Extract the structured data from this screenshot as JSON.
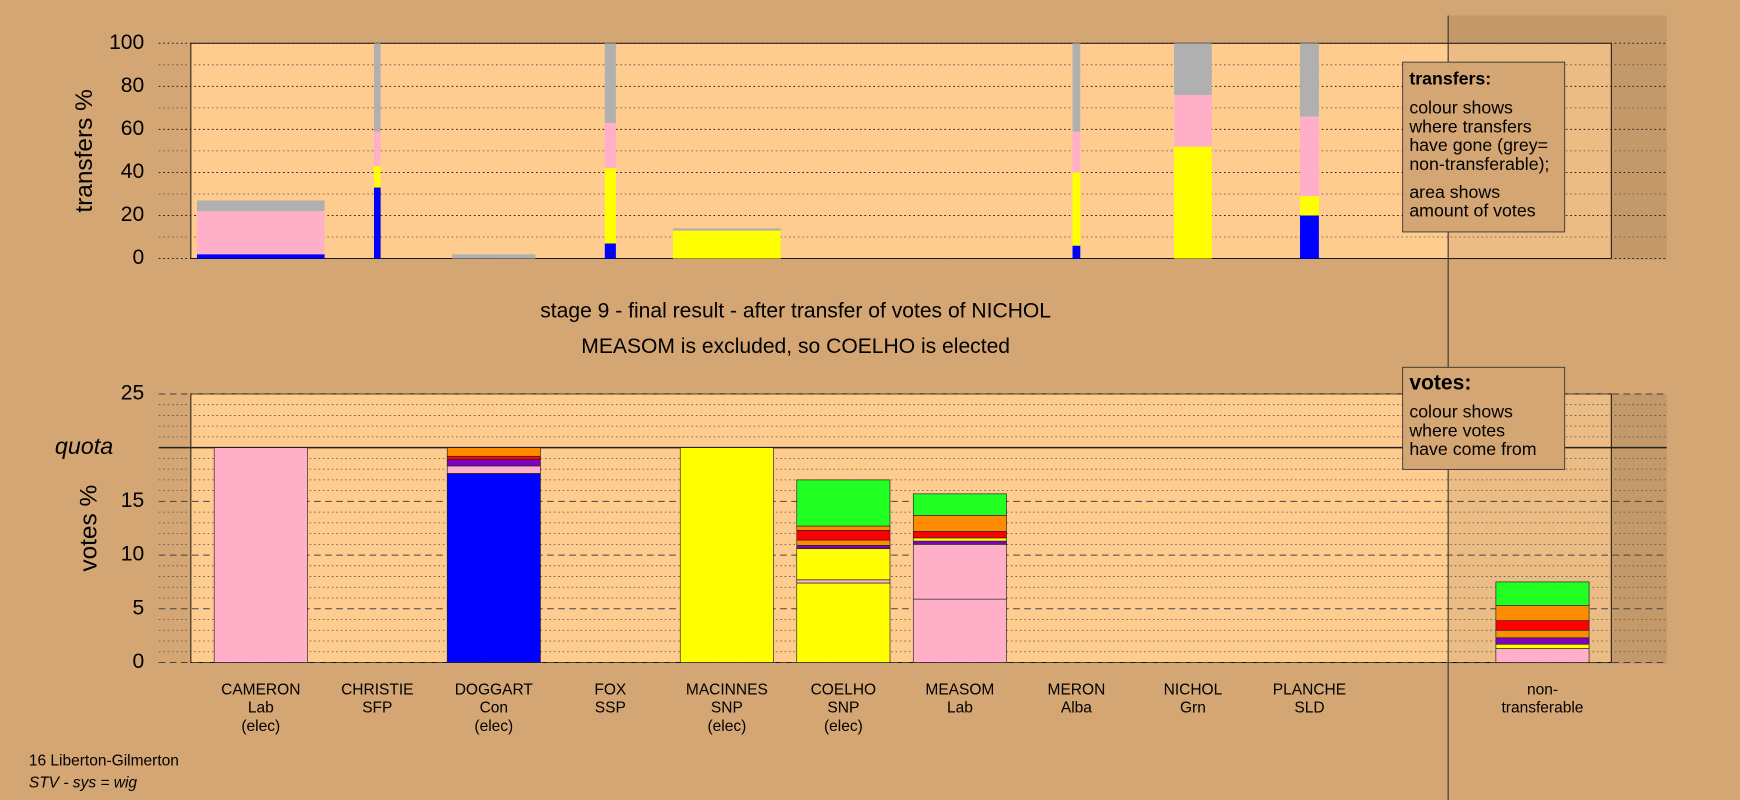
{
  "chart_data": [
    {
      "type": "bar",
      "ylabel": "transfers %",
      "ylim": [
        0,
        100
      ],
      "yticks": [
        0,
        20,
        40,
        60,
        80,
        100
      ],
      "minor_yticks": [
        10,
        30,
        50,
        70,
        90
      ],
      "amounts": [
        11.5,
        0.6,
        7.5,
        1,
        9.7,
        null,
        null,
        0.7,
        3.4,
        1.7,
        null
      ],
      "series": [
        {
          "color": "#0000ff",
          "values": [
            2,
            33,
            null,
            7,
            null,
            null,
            null,
            6,
            null,
            20,
            null
          ]
        },
        {
          "color": "#ffff00",
          "values": [
            null,
            10,
            null,
            35,
            13,
            null,
            null,
            34,
            52,
            9,
            null
          ]
        },
        {
          "color": "#ffb0c8",
          "values": [
            20,
            16,
            null,
            21,
            null,
            null,
            null,
            19,
            24,
            37,
            null
          ]
        },
        {
          "color": "#b0b0b0",
          "values": [
            5,
            41,
            2,
            37,
            1,
            null,
            null,
            41,
            24,
            34,
            null
          ]
        }
      ],
      "note": {
        "title": "transfers:",
        "paragraphs": [
          [
            "colour shows",
            "where transfers",
            "have gone (grey=",
            "non-transferable);"
          ],
          [
            "area shows",
            "amount of votes"
          ]
        ]
      }
    },
    {
      "type": "stacked-bar",
      "title": "stage 9 - final result - after transfer of votes of NICHOL",
      "subtitle": "MEASOM is excluded, so COELHO is elected",
      "ylabel": "votes %",
      "ylim": [
        0,
        25
      ],
      "yticks": [
        0,
        5,
        10,
        15,
        {
          "value": 20,
          "label": "quota"
        },
        25
      ],
      "minor_yticks": [
        1,
        2,
        3,
        4,
        6,
        7,
        8,
        9,
        11,
        12,
        13,
        14,
        16,
        17,
        18,
        19,
        21,
        22,
        23,
        24
      ],
      "categories": [
        [
          "CAMERON",
          "Lab",
          "(elec)"
        ],
        [
          "CHRISTIE",
          "SFP"
        ],
        [
          "DOGGART",
          "Con",
          "(elec)"
        ],
        [
          "FOX",
          "SSP"
        ],
        [
          "MACINNES",
          "SNP",
          "(elec)"
        ],
        [
          "COELHO",
          "SNP",
          "(elec)"
        ],
        [
          "MEASOM",
          "Lab"
        ],
        [
          "MERON",
          "Alba"
        ],
        [
          "NICHOL",
          "Grn"
        ],
        [
          "PLANCHE",
          "SLD"
        ],
        [
          "non-",
          "transferable"
        ]
      ],
      "bars": [
        [
          {
            "color": "#ffb0c8",
            "value": 20
          }
        ],
        [],
        [
          {
            "color": "#0000ff",
            "value": 17.6
          },
          {
            "color": "#ffb0c8",
            "value": 0.7
          },
          {
            "color": "#8000c0",
            "value": 0.6
          },
          {
            "color": "#ff0000",
            "value": 0.3
          },
          {
            "color": "#ff8c00",
            "value": 0.8
          }
        ],
        [],
        [
          {
            "color": "#ffff00",
            "value": 20
          }
        ],
        [
          {
            "color": "#ffff00",
            "value": 7.4
          },
          {
            "color": "#ffb0c8",
            "value": 0.3
          },
          {
            "color": "#ffff00",
            "value": 2.9
          },
          {
            "color": "#8000c0",
            "value": 0.3
          },
          {
            "color": "#ff8c00",
            "value": 0.5
          },
          {
            "color": "#ff0000",
            "value": 0.9
          },
          {
            "color": "#ff8c00",
            "value": 0.4
          },
          {
            "color": "#22ff22",
            "value": 4.3
          }
        ],
        [
          {
            "color": "#ffb0c8",
            "value": 5.9
          },
          {
            "color": "#ffb0c8",
            "value": 5.1
          },
          {
            "color": "#8000c0",
            "value": 0.3
          },
          {
            "color": "#ffff00",
            "value": 0.3
          },
          {
            "color": "#ff0000",
            "value": 0.6
          },
          {
            "color": "#ff8c00",
            "value": 1.5
          },
          {
            "color": "#22ff22",
            "value": 2.0
          }
        ],
        [],
        [],
        [],
        [
          {
            "color": "#ffb0c8",
            "value": 1.3
          },
          {
            "color": "#ffff00",
            "value": 0.4
          },
          {
            "color": "#8000c0",
            "value": 0.6
          },
          {
            "color": "#ff8c00",
            "value": 0.7
          },
          {
            "color": "#ff0000",
            "value": 0.9
          },
          {
            "color": "#ff8c00",
            "value": 1.4
          },
          {
            "color": "#22ff22",
            "value": 2.2
          }
        ]
      ],
      "note": {
        "title": "votes:",
        "paragraphs": [
          [
            "colour shows",
            "where votes",
            "have come from"
          ]
        ]
      }
    }
  ],
  "footer": [
    "16 Liberton-Gilmerton",
    "STV - sys = wig"
  ]
}
